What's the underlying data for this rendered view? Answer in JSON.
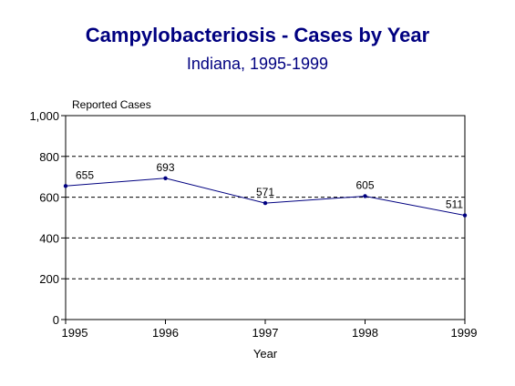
{
  "chart_data": {
    "type": "line",
    "title": "Campylobacteriosis - Cases by Year",
    "subtitle": "Indiana, 1995-1999",
    "xlabel": "Year",
    "ylabel": "Reported Cases",
    "categories": [
      "1995",
      "1996",
      "1997",
      "1998",
      "1999"
    ],
    "values": [
      655,
      693,
      571,
      605,
      511
    ],
    "data_labels": [
      "655",
      "693",
      "571",
      "605",
      "511"
    ],
    "ylim": [
      0,
      1000
    ],
    "yticks": [
      0,
      200,
      400,
      600,
      800,
      1000
    ],
    "ytick_labels": [
      "0",
      "200",
      "400",
      "600",
      "800",
      "1,000"
    ],
    "grid": "dashed horizontal",
    "legend": "none",
    "line_color": "#000080"
  }
}
